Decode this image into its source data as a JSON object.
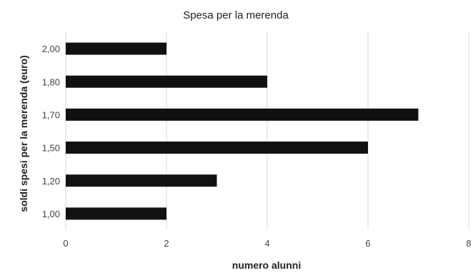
{
  "chart_data": {
    "type": "bar",
    "orientation": "horizontal",
    "title": "Spesa per la merenda",
    "xlabel": "numero alunni",
    "ylabel": "soldi spesi per la merenda (euro)",
    "categories": [
      "1,00",
      "1,20",
      "1,50",
      "1,70",
      "1,80",
      "2,00"
    ],
    "values": [
      2,
      3,
      6,
      7,
      4,
      2
    ],
    "xlim": [
      0,
      8
    ],
    "xticks": [
      "0",
      "2",
      "4",
      "6",
      "8"
    ],
    "grid": true,
    "bar_color": "#111111",
    "grid_color": "#d9d9d9"
  }
}
